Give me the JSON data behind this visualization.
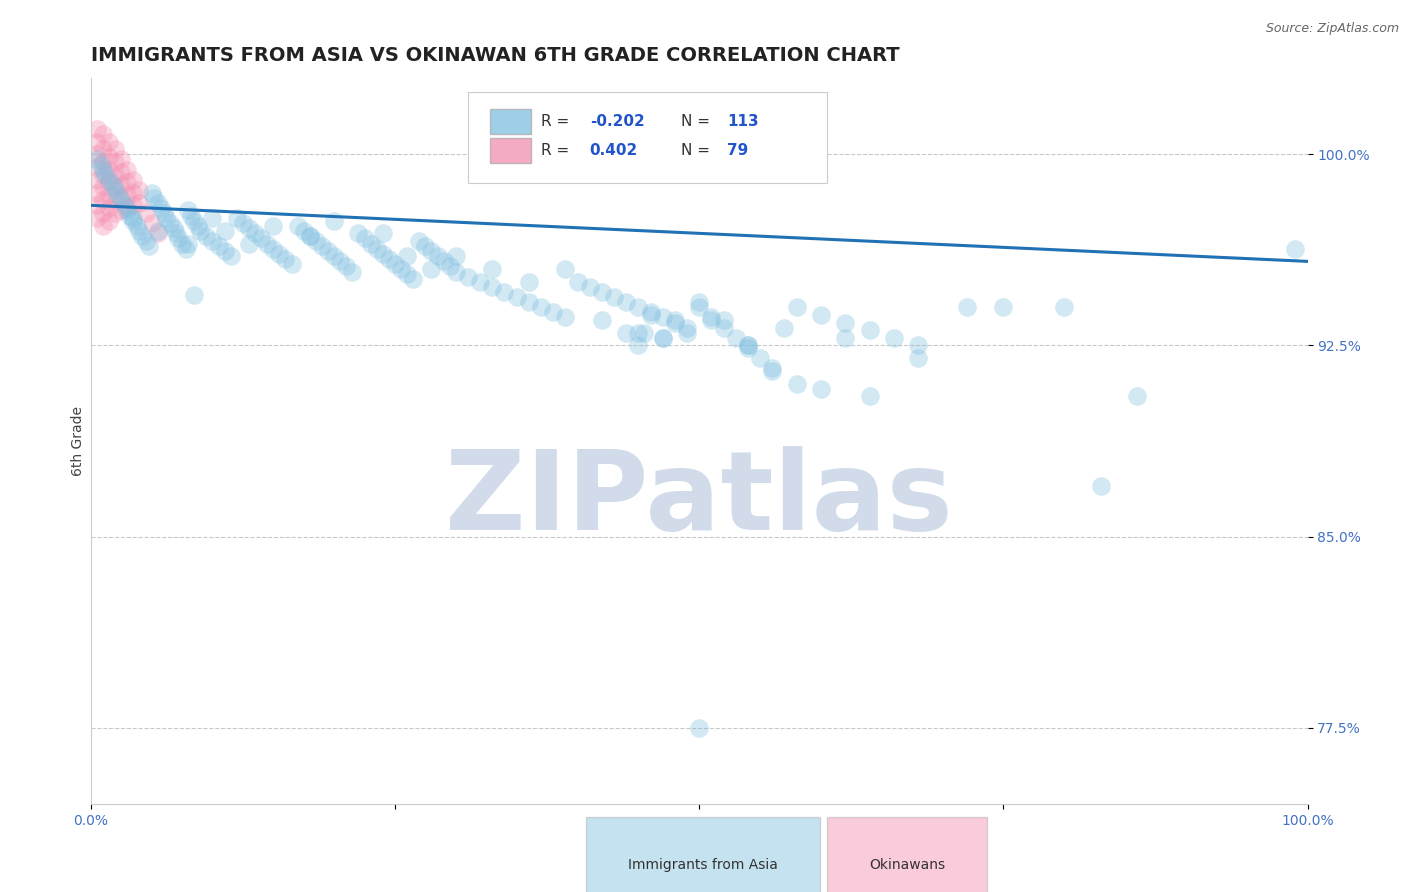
{
  "title": "IMMIGRANTS FROM ASIA VS OKINAWAN 6TH GRADE CORRELATION CHART",
  "source_text": "Source: ZipAtlas.com",
  "ylabel": "6th Grade",
  "xlim": [
    0.0,
    1.0
  ],
  "ylim": [
    0.745,
    1.03
  ],
  "yticks": [
    0.775,
    0.85,
    0.925,
    1.0
  ],
  "ytick_labels": [
    "77.5%",
    "85.0%",
    "92.5%",
    "100.0%"
  ],
  "xticks": [
    0.0,
    0.25,
    0.5,
    0.75,
    1.0
  ],
  "xtick_labels": [
    "0.0%",
    "",
    "",
    "",
    "100.0%"
  ],
  "blue_color": "#7fbfdf",
  "pink_color": "#f48fb1",
  "trend_color": "#2171b5",
  "watermark": "ZIPatlas",
  "watermark_color": "#cdd8e8",
  "title_fontsize": 14,
  "axis_label_fontsize": 10,
  "tick_fontsize": 10,
  "trend_x": [
    0.0,
    1.0
  ],
  "trend_y": [
    0.98,
    0.958
  ],
  "blue_x": [
    0.005,
    0.008,
    0.01,
    0.012,
    0.015,
    0.018,
    0.02,
    0.022,
    0.025,
    0.028,
    0.03,
    0.032,
    0.035,
    0.038,
    0.04,
    0.042,
    0.045,
    0.048,
    0.05,
    0.052,
    0.055,
    0.058,
    0.06,
    0.062,
    0.065,
    0.068,
    0.07,
    0.072,
    0.075,
    0.078,
    0.08,
    0.082,
    0.085,
    0.088,
    0.09,
    0.095,
    0.1,
    0.105,
    0.11,
    0.115,
    0.12,
    0.125,
    0.13,
    0.135,
    0.14,
    0.145,
    0.15,
    0.155,
    0.16,
    0.165,
    0.17,
    0.175,
    0.18,
    0.185,
    0.19,
    0.195,
    0.2,
    0.205,
    0.21,
    0.215,
    0.22,
    0.225,
    0.23,
    0.235,
    0.24,
    0.245,
    0.25,
    0.255,
    0.26,
    0.265,
    0.27,
    0.275,
    0.28,
    0.285,
    0.29,
    0.295,
    0.3,
    0.31,
    0.32,
    0.33,
    0.34,
    0.35,
    0.36,
    0.37,
    0.38,
    0.39,
    0.4,
    0.41,
    0.42,
    0.43,
    0.44,
    0.45,
    0.46,
    0.47,
    0.48,
    0.49,
    0.5,
    0.51,
    0.52,
    0.53,
    0.54,
    0.55,
    0.56,
    0.58,
    0.6,
    0.62,
    0.64,
    0.66,
    0.68,
    0.72,
    0.75,
    0.8,
    0.83,
    0.99
  ],
  "blue_y": [
    0.998,
    0.996,
    0.994,
    0.992,
    0.99,
    0.988,
    0.986,
    0.984,
    0.982,
    0.98,
    0.978,
    0.976,
    0.974,
    0.972,
    0.97,
    0.968,
    0.966,
    0.964,
    0.985,
    0.983,
    0.981,
    0.979,
    0.977,
    0.975,
    0.973,
    0.971,
    0.969,
    0.967,
    0.965,
    0.963,
    0.978,
    0.976,
    0.974,
    0.972,
    0.97,
    0.968,
    0.966,
    0.964,
    0.962,
    0.96,
    0.975,
    0.973,
    0.971,
    0.969,
    0.967,
    0.965,
    0.963,
    0.961,
    0.959,
    0.957,
    0.972,
    0.97,
    0.968,
    0.966,
    0.964,
    0.962,
    0.96,
    0.958,
    0.956,
    0.954,
    0.969,
    0.967,
    0.965,
    0.963,
    0.961,
    0.959,
    0.957,
    0.955,
    0.953,
    0.951,
    0.966,
    0.964,
    0.962,
    0.96,
    0.958,
    0.956,
    0.954,
    0.952,
    0.95,
    0.948,
    0.946,
    0.944,
    0.942,
    0.94,
    0.938,
    0.936,
    0.95,
    0.948,
    0.946,
    0.944,
    0.942,
    0.94,
    0.938,
    0.936,
    0.934,
    0.932,
    0.94,
    0.936,
    0.932,
    0.928,
    0.924,
    0.92,
    0.916,
    0.94,
    0.937,
    0.934,
    0.931,
    0.928,
    0.925,
    0.94,
    0.94,
    0.94,
    0.87,
    0.963
  ],
  "blue_x2": [
    0.035,
    0.055,
    0.08,
    0.1,
    0.11,
    0.13,
    0.15,
    0.18,
    0.2,
    0.24,
    0.26,
    0.28,
    0.3,
    0.33,
    0.36,
    0.39,
    0.42,
    0.45,
    0.46,
    0.47,
    0.48,
    0.49,
    0.5,
    0.52,
    0.54,
    0.56,
    0.58,
    0.6,
    0.64
  ],
  "blue_y2": [
    0.975,
    0.97,
    0.965,
    0.975,
    0.97,
    0.965,
    0.972,
    0.968,
    0.974,
    0.969,
    0.96,
    0.955,
    0.96,
    0.955,
    0.95,
    0.955,
    0.935,
    0.93,
    0.937,
    0.928,
    0.935,
    0.93,
    0.942,
    0.935,
    0.925,
    0.915,
    0.91,
    0.908,
    0.905
  ],
  "blue_outliers_x": [
    0.085,
    0.44,
    0.45,
    0.455,
    0.47,
    0.51,
    0.54,
    0.57,
    0.62,
    0.68,
    0.86,
    0.5
  ],
  "blue_outliers_y": [
    0.945,
    0.93,
    0.925,
    0.93,
    0.928,
    0.935,
    0.925,
    0.932,
    0.928,
    0.92,
    0.905,
    0.775
  ],
  "pink_x": [
    0.005,
    0.005,
    0.005,
    0.005,
    0.005,
    0.005,
    0.005,
    0.005,
    0.01,
    0.01,
    0.01,
    0.01,
    0.01,
    0.01,
    0.01,
    0.01,
    0.015,
    0.015,
    0.015,
    0.015,
    0.015,
    0.015,
    0.015,
    0.02,
    0.02,
    0.02,
    0.02,
    0.02,
    0.02,
    0.025,
    0.025,
    0.025,
    0.025,
    0.025,
    0.03,
    0.03,
    0.03,
    0.03,
    0.035,
    0.035,
    0.035,
    0.04,
    0.04,
    0.045,
    0.05,
    0.055
  ],
  "pink_y": [
    1.01,
    1.005,
    1.0,
    0.995,
    0.99,
    0.985,
    0.98,
    0.975,
    1.008,
    1.002,
    0.997,
    0.992,
    0.987,
    0.982,
    0.977,
    0.972,
    1.005,
    0.999,
    0.994,
    0.989,
    0.984,
    0.979,
    0.974,
    1.002,
    0.997,
    0.992,
    0.987,
    0.982,
    0.977,
    0.998,
    0.993,
    0.988,
    0.983,
    0.978,
    0.994,
    0.989,
    0.984,
    0.979,
    0.99,
    0.985,
    0.98,
    0.986,
    0.981,
    0.977,
    0.973,
    0.969
  ]
}
